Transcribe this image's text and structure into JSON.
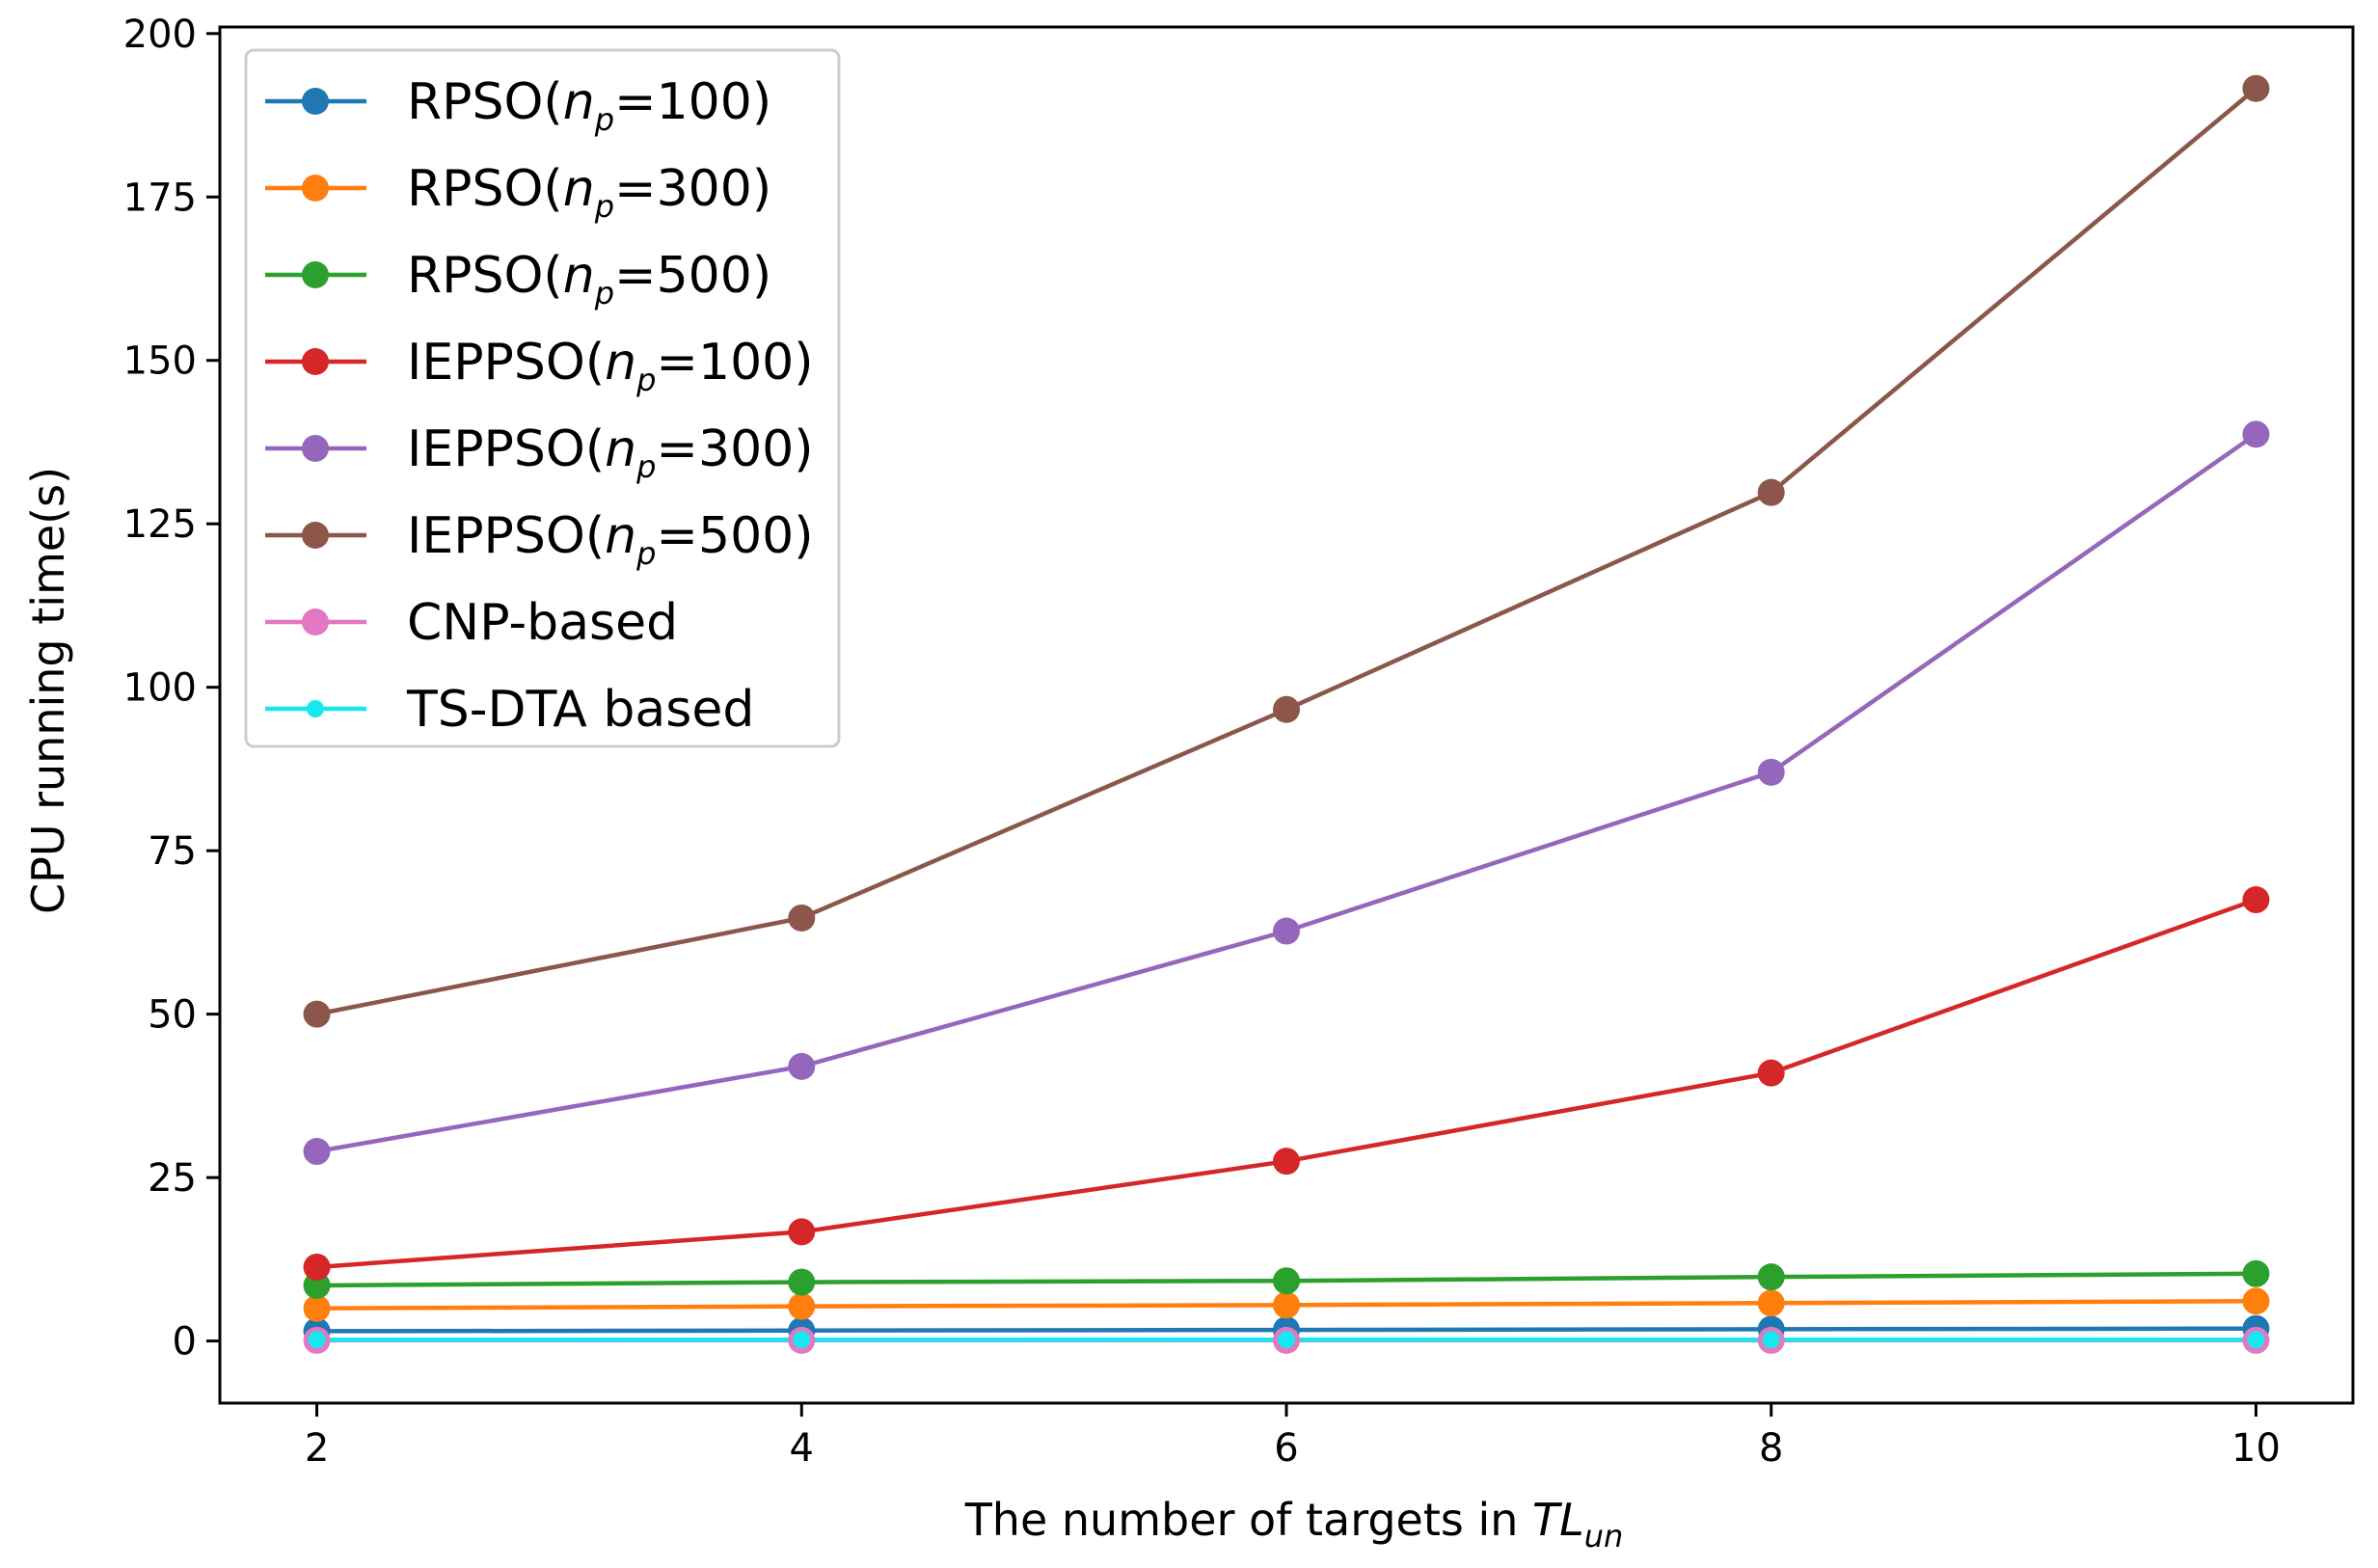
{
  "chart_data": {
    "type": "line",
    "title": "",
    "xlabel": {
      "main": "The number of targets in ",
      "italic": "TL",
      "subscript": "un"
    },
    "ylabel": "CPU running time(s)",
    "x": [
      2,
      4,
      6,
      8,
      10
    ],
    "xlim": [
      1.6,
      10.4
    ],
    "ylim": [
      -9.5,
      201
    ],
    "xticks": [
      2,
      4,
      6,
      8,
      10
    ],
    "yticks": [
      0,
      25,
      50,
      75,
      100,
      125,
      150,
      175,
      200
    ],
    "grid": false,
    "legend_position": "upper-left",
    "series": [
      {
        "name": "RPSO(np=100)",
        "label": {
          "prefix": "RPSO(",
          "var": "n",
          "sub": "p",
          "suffix": "=100)"
        },
        "color": "#1f77b4",
        "values": [
          1.5,
          1.6,
          1.7,
          1.8,
          1.9
        ]
      },
      {
        "name": "RPSO(np=300)",
        "label": {
          "prefix": "RPSO(",
          "var": "n",
          "sub": "p",
          "suffix": "=300)"
        },
        "color": "#ff7f0e",
        "values": [
          5.0,
          5.3,
          5.5,
          5.8,
          6.1
        ]
      },
      {
        "name": "RPSO(np=500)",
        "label": {
          "prefix": "RPSO(",
          "var": "n",
          "sub": "p",
          "suffix": "=500)"
        },
        "color": "#2ca02c",
        "values": [
          8.5,
          9.0,
          9.2,
          9.8,
          10.3
        ]
      },
      {
        "name": "IEPPSO(np=100)",
        "label": {
          "prefix": "IEPPSO(",
          "var": "n",
          "sub": "p",
          "suffix": "=100)"
        },
        "color": "#d62728",
        "values": [
          11.3,
          16.7,
          27.5,
          41.0,
          67.5
        ]
      },
      {
        "name": "IEPPSO(np=300)",
        "label": {
          "prefix": "IEPPSO(",
          "var": "n",
          "sub": "p",
          "suffix": "=300)"
        },
        "color": "#9467bd",
        "values": [
          29.0,
          42.0,
          62.7,
          87.0,
          138.7
        ]
      },
      {
        "name": "IEPPSO(np=500)",
        "label": {
          "prefix": "IEPPSO(",
          "var": "n",
          "sub": "p",
          "suffix": "=500)"
        },
        "color": "#8c564b",
        "values": [
          50.0,
          64.7,
          96.6,
          129.8,
          191.6
        ]
      },
      {
        "name": "CNP-based",
        "label": {
          "prefix": "CNP-based",
          "var": "",
          "sub": "",
          "suffix": ""
        },
        "color": "#e377c2",
        "values": [
          0.1,
          0.1,
          0.1,
          0.1,
          0.1
        ]
      },
      {
        "name": "TS-DTA based",
        "label": {
          "prefix": "TS-DTA based",
          "var": "",
          "sub": "",
          "suffix": ""
        },
        "color": "#17e8ef",
        "small_marker": true,
        "values": [
          0.2,
          0.2,
          0.2,
          0.2,
          0.2
        ]
      }
    ]
  }
}
